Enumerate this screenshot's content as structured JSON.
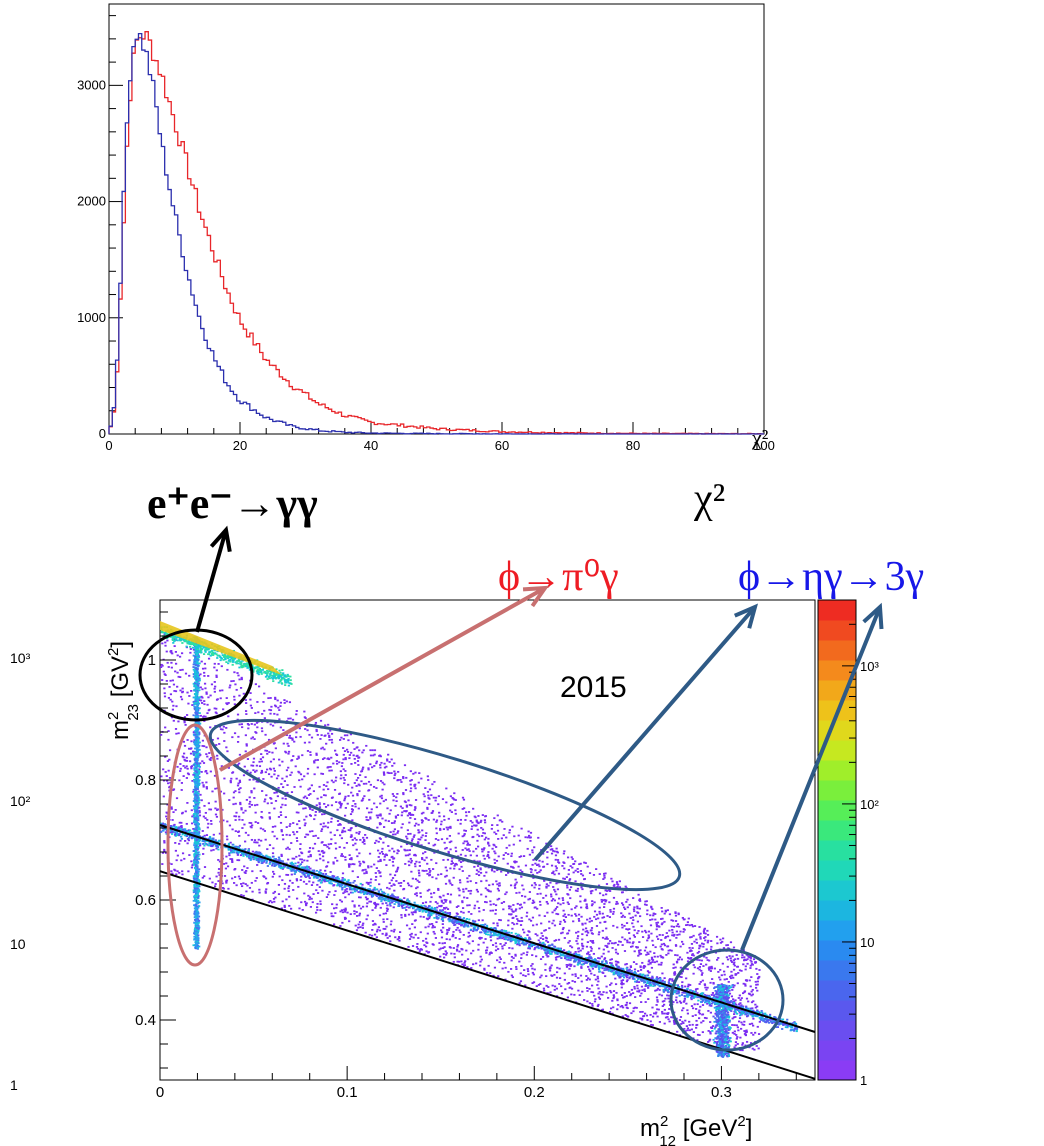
{
  "chart_data": [
    {
      "type": "line",
      "chart_kind": "histogram",
      "xlabel": "χ²",
      "axis_title": "χ²",
      "xlim": [
        0,
        100
      ],
      "ylim": [
        0,
        3700
      ],
      "x_ticks": [
        "0",
        "20",
        "40",
        "60",
        "80",
        "100"
      ],
      "y_ticks": [
        "0",
        "1000",
        "2000",
        "3000"
      ],
      "x_tick_values": [
        0,
        20,
        40,
        60,
        80,
        100
      ],
      "y_tick_values": [
        0,
        1000,
        2000,
        3000
      ],
      "grid": false,
      "series": [
        {
          "color": "#e8262a",
          "x": [
            0,
            1,
            2,
            3,
            4,
            5,
            6,
            7,
            8,
            10,
            12,
            14,
            16,
            18,
            20,
            24,
            28,
            32,
            36,
            40,
            50,
            60,
            70,
            80,
            90,
            100
          ],
          "values": [
            0,
            250,
            1500,
            2800,
            3350,
            3450,
            3400,
            3250,
            3100,
            2700,
            2300,
            1900,
            1560,
            1240,
            980,
            640,
            420,
            260,
            160,
            100,
            45,
            20,
            10,
            5,
            3,
            2
          ]
        },
        {
          "color": "#2b2fae",
          "x": [
            0,
            1,
            2,
            3,
            4,
            5,
            6,
            7,
            8,
            10,
            12,
            14,
            16,
            18,
            20,
            24,
            28,
            32,
            36,
            40,
            50,
            60,
            70,
            80,
            90,
            100
          ],
          "values": [
            0,
            300,
            1700,
            3000,
            3470,
            3400,
            3200,
            2900,
            2500,
            1900,
            1380,
            960,
            660,
            440,
            290,
            140,
            65,
            30,
            15,
            8,
            3,
            1,
            0,
            0,
            0,
            0
          ]
        }
      ]
    },
    {
      "type": "heatmap",
      "xlabel": "m²₁₂ [GeV²]",
      "ylabel": "m²₂₃ [GV²]",
      "xlim": [
        0,
        0.35
      ],
      "ylim": [
        0.3,
        1.1
      ],
      "x_ticks": [
        "0",
        "0.1",
        "0.2",
        "0.3"
      ],
      "y_ticks": [
        "0.4",
        "0.6",
        "0.8",
        "1"
      ],
      "x_tick_values": [
        0,
        0.1,
        0.2,
        0.3
      ],
      "y_tick_values": [
        0.4,
        0.6,
        0.8,
        1.0
      ],
      "z_scale": "log",
      "z_range": [
        1,
        3000
      ],
      "z_ticks": [
        "1",
        "10",
        "10²",
        "10³"
      ],
      "z_tick_values": [
        1,
        10,
        100,
        1000
      ],
      "outside_z_labels": [
        "10³",
        "10²",
        "10",
        "1"
      ],
      "annotation": "2015",
      "lines": [
        {
          "x": [
            0,
            0.35
          ],
          "y": [
            0.725,
            0.38
          ]
        },
        {
          "x": [
            0,
            0.35
          ],
          "y": [
            0.648,
            0.302
          ]
        }
      ],
      "features": {
        "vertical_band": {
          "x": 0.019,
          "y": [
            0.52,
            1.04
          ]
        },
        "diagonal_band": {
          "x": [
            0.0,
            0.34
          ],
          "y": [
            0.73,
            0.38
          ]
        },
        "cluster": {
          "x": 0.3,
          "y": [
            0.34,
            0.46
          ]
        },
        "hot_corner": {
          "x": [
            0.0,
            0.07
          ],
          "y": [
            0.96,
            1.05
          ]
        }
      }
    }
  ],
  "labels": {
    "eegg": "e⁺e⁻→γγ",
    "phi_pi0": "ϕ→π⁰γ",
    "phi_eta": "ϕ→ηγ→3γ",
    "chi2": "χ²",
    "year": "2015"
  },
  "colors": {
    "red_label": "#ee1c24",
    "blue_label": "#1717e8",
    "arrow_red": "#c87070",
    "arrow_blue": "#2e5a86",
    "ellipse_black": "#000000",
    "ellipse_red": "#c87070",
    "ellipse_blue": "#2e5a86"
  }
}
